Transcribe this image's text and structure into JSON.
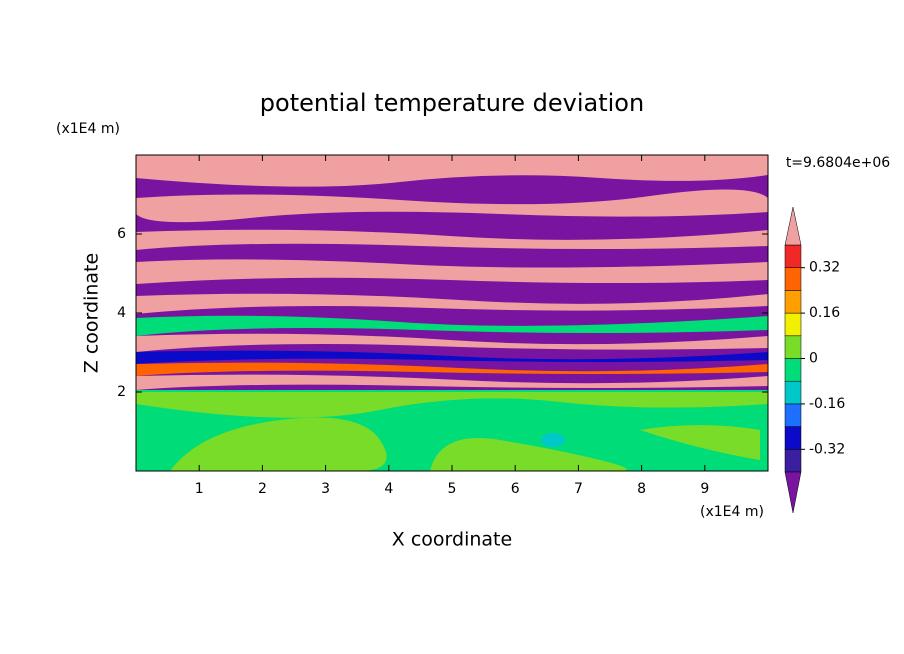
{
  "chart_data": {
    "type": "contour",
    "title": "potential temperature deviation",
    "x_label": "X coordinate",
    "y_label": "Z coordinate",
    "x_unit": "(x1E4 m)",
    "y_unit": "(x1E4 m)",
    "time_label": "t=9.6804e+06",
    "xlim": [
      0,
      10
    ],
    "xticks": [
      1,
      2,
      3,
      4,
      5,
      6,
      7,
      8,
      9
    ],
    "ylim": [
      0,
      8
    ],
    "yticks": [
      2,
      4,
      6
    ],
    "colorbar": {
      "levels": [
        -0.4,
        -0.32,
        -0.24,
        -0.16,
        -0.08,
        0,
        0.08,
        0.16,
        0.24,
        0.32,
        0.4
      ],
      "colors": [
        "#7814a0",
        "#3c1ea0",
        "#0a0ac8",
        "#1e6eff",
        "#00c8c8",
        "#00dc78",
        "#78dc28",
        "#f0f000",
        "#ffa000",
        "#ff6400",
        "#f02828",
        "#f0a0a0"
      ],
      "ticks": [
        0.32,
        0.16,
        0,
        -0.16,
        -0.32
      ]
    }
  }
}
